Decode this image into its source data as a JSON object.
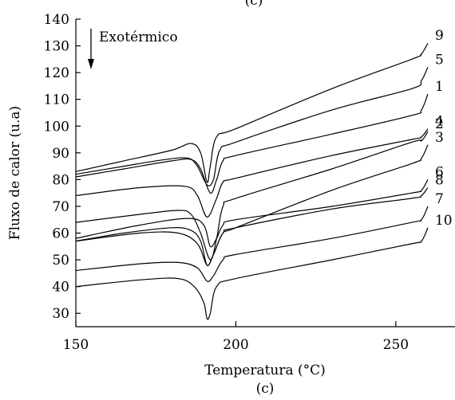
{
  "chart_data": {
    "type": "line",
    "panel_label": "(c)",
    "xlabel": "Temperatura (°C)",
    "ylabel": "Fluxo de calor (u.a)",
    "xlim": [
      150,
      265
    ],
    "ylim": [
      25,
      140
    ],
    "xticks": [
      150,
      200,
      250
    ],
    "yticks": [
      30,
      40,
      50,
      60,
      70,
      80,
      90,
      100,
      110,
      120,
      130,
      140
    ],
    "annotation": "Exotérmico",
    "series": [
      {
        "name": "9",
        "points": [
          [
            150,
            83
          ],
          [
            165,
            87
          ],
          [
            180,
            91
          ],
          [
            186,
            93.5
          ],
          [
            189,
            90
          ],
          [
            191,
            79
          ],
          [
            192,
            85
          ],
          [
            194,
            96
          ],
          [
            200,
            99
          ],
          [
            230,
            114
          ],
          [
            255,
            125
          ],
          [
            258,
            127
          ],
          [
            260,
            131
          ]
        ]
      },
      {
        "name": "5",
        "points": [
          [
            150,
            82
          ],
          [
            165,
            85
          ],
          [
            178,
            87.5
          ],
          [
            185,
            88
          ],
          [
            188,
            85
          ],
          [
            191,
            78
          ],
          [
            193,
            80
          ],
          [
            195,
            91
          ],
          [
            200,
            94
          ],
          [
            230,
            106
          ],
          [
            255,
            114
          ],
          [
            258,
            117
          ],
          [
            260,
            122
          ]
        ]
      },
      {
        "name": "1",
        "points": [
          [
            150,
            81
          ],
          [
            165,
            84
          ],
          [
            180,
            87
          ],
          [
            186,
            87.5
          ],
          [
            189,
            84
          ],
          [
            192,
            75
          ],
          [
            194,
            80
          ],
          [
            196,
            87
          ],
          [
            200,
            89
          ],
          [
            230,
            97
          ],
          [
            255,
            104
          ],
          [
            258,
            106
          ],
          [
            260,
            112
          ]
        ]
      },
      {
        "name": "4",
        "points": [
          [
            150,
            74
          ],
          [
            170,
            77
          ],
          [
            184,
            77.5
          ],
          [
            188,
            74
          ],
          [
            191,
            66
          ],
          [
            194,
            73
          ],
          [
            196,
            79
          ],
          [
            200,
            80.5
          ],
          [
            230,
            89
          ],
          [
            255,
            95
          ],
          [
            258,
            96
          ],
          [
            260,
            99
          ]
        ]
      },
      {
        "name": "2",
        "points": [
          [
            150,
            64
          ],
          [
            170,
            67
          ],
          [
            182,
            68.5
          ],
          [
            186,
            67
          ],
          [
            189,
            60
          ],
          [
            192,
            50
          ],
          [
            194,
            58
          ],
          [
            196,
            70
          ],
          [
            200,
            73
          ],
          [
            230,
            84
          ],
          [
            255,
            94
          ],
          [
            258,
            94.5
          ],
          [
            260,
            98
          ]
        ]
      },
      {
        "name": "3",
        "points": [
          [
            150,
            57
          ],
          [
            165,
            60
          ],
          [
            180,
            62
          ],
          [
            186,
            61
          ],
          [
            189,
            57
          ],
          [
            191,
            48
          ],
          [
            193,
            52
          ],
          [
            196,
            60
          ],
          [
            200,
            62
          ],
          [
            230,
            76
          ],
          [
            255,
            86
          ],
          [
            258,
            88
          ],
          [
            260,
            93
          ]
        ]
      },
      {
        "name": "6",
        "points": [
          [
            150,
            58
          ],
          [
            170,
            63
          ],
          [
            185,
            65.5
          ],
          [
            190,
            63
          ],
          [
            192,
            55
          ],
          [
            194,
            58
          ],
          [
            196,
            63
          ],
          [
            200,
            65
          ],
          [
            230,
            70
          ],
          [
            255,
            75
          ],
          [
            258,
            76
          ],
          [
            260,
            80
          ]
        ]
      },
      {
        "name": "8",
        "points": [
          [
            150,
            57
          ],
          [
            170,
            60
          ],
          [
            182,
            60
          ],
          [
            188,
            56
          ],
          [
            191,
            48
          ],
          [
            193,
            52
          ],
          [
            196,
            60
          ],
          [
            200,
            62
          ],
          [
            230,
            69
          ],
          [
            255,
            73
          ],
          [
            258,
            74
          ],
          [
            260,
            77
          ]
        ]
      },
      {
        "name": "7",
        "points": [
          [
            150,
            46
          ],
          [
            170,
            48.5
          ],
          [
            182,
            49
          ],
          [
            188,
            47
          ],
          [
            191,
            42
          ],
          [
            193,
            44
          ],
          [
            196,
            50
          ],
          [
            200,
            52
          ],
          [
            230,
            58
          ],
          [
            255,
            64
          ],
          [
            258,
            65
          ],
          [
            260,
            70
          ]
        ]
      },
      {
        "name": "10",
        "points": [
          [
            150,
            40
          ],
          [
            170,
            42.5
          ],
          [
            182,
            43
          ],
          [
            187,
            40
          ],
          [
            190,
            34
          ],
          [
            191,
            28
          ],
          [
            192,
            30
          ],
          [
            194,
            40
          ],
          [
            200,
            43
          ],
          [
            230,
            50
          ],
          [
            255,
            56
          ],
          [
            258,
            57
          ],
          [
            260,
            62
          ]
        ]
      }
    ]
  }
}
